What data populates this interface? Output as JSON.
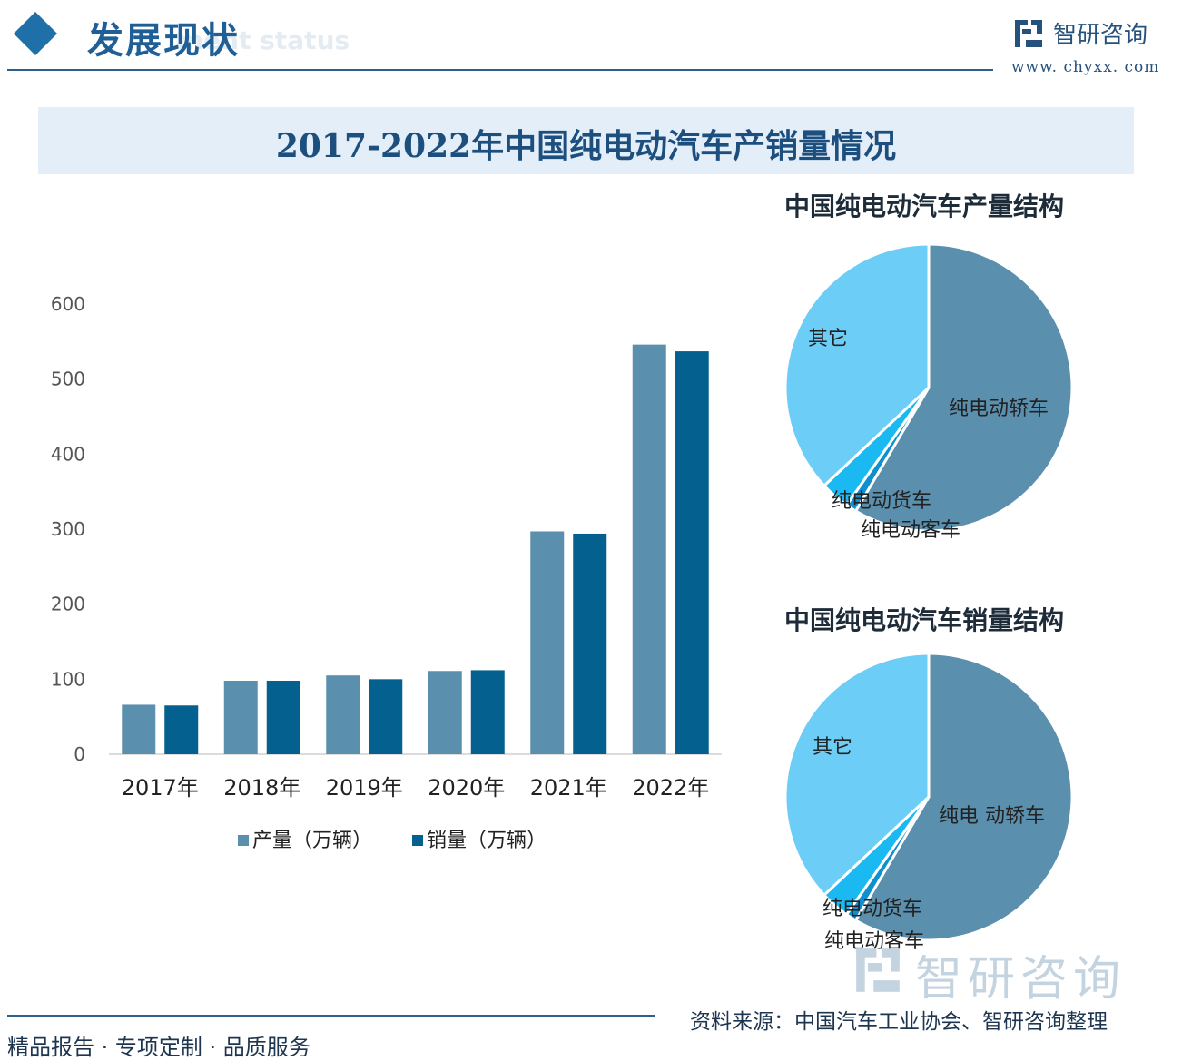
{
  "header": {
    "section_title": "发展现状",
    "section_subtitle": "ment status",
    "brand_name": "智研咨询",
    "brand_url": "www. chyxx. com"
  },
  "banner": {
    "title": "2017-2022年中国纯电动汽车产销量情况"
  },
  "chart_data": [
    {
      "type": "bar",
      "title": "",
      "categories": [
        "2017年",
        "2018年",
        "2019年",
        "2020年",
        "2021年",
        "2022年"
      ],
      "series": [
        {
          "name": "产量（万辆）",
          "values": [
            66,
            98,
            105,
            111,
            297,
            546
          ],
          "color": "#5b8fae"
        },
        {
          "name": "销量（万辆）",
          "values": [
            65,
            98,
            100,
            112,
            294,
            537
          ],
          "color": "#04608e"
        }
      ],
      "ylim": [
        0,
        600
      ],
      "yticks": [
        0,
        100,
        200,
        300,
        400,
        500,
        600
      ],
      "xlabel": "",
      "ylabel": "",
      "grid": false,
      "legend": "bottom"
    },
    {
      "type": "pie",
      "title": "中国纯电动汽车产量结构",
      "slices": [
        {
          "label": "纯电动轿车",
          "value": 58.5,
          "color": "#5b8fae"
        },
        {
          "label": "纯电动客车",
          "value": 1.2,
          "color": "#0d8fd0"
        },
        {
          "label": "纯电动货车",
          "value": 3.3,
          "color": "#1bb9f2"
        },
        {
          "label": "其它",
          "value": 37.0,
          "color": "#6ccdf6"
        }
      ]
    },
    {
      "type": "pie",
      "title": "中国纯电动汽车销量结构",
      "slices": [
        {
          "label": "纯电 动轿车",
          "value": 58.5,
          "color": "#5b8fae"
        },
        {
          "label": "纯电动客车",
          "value": 1.2,
          "color": "#0d8fd0"
        },
        {
          "label": "纯电动货车",
          "value": 3.3,
          "color": "#1bb9f2"
        },
        {
          "label": "其它",
          "value": 37.0,
          "color": "#6ccdf6"
        }
      ]
    }
  ],
  "footer": {
    "left_text": "精品报告 · 专项定制 · 品质服务",
    "source_text": "资料来源：中国汽车工业协会、智研咨询整理",
    "watermark_name": "智研咨询"
  }
}
